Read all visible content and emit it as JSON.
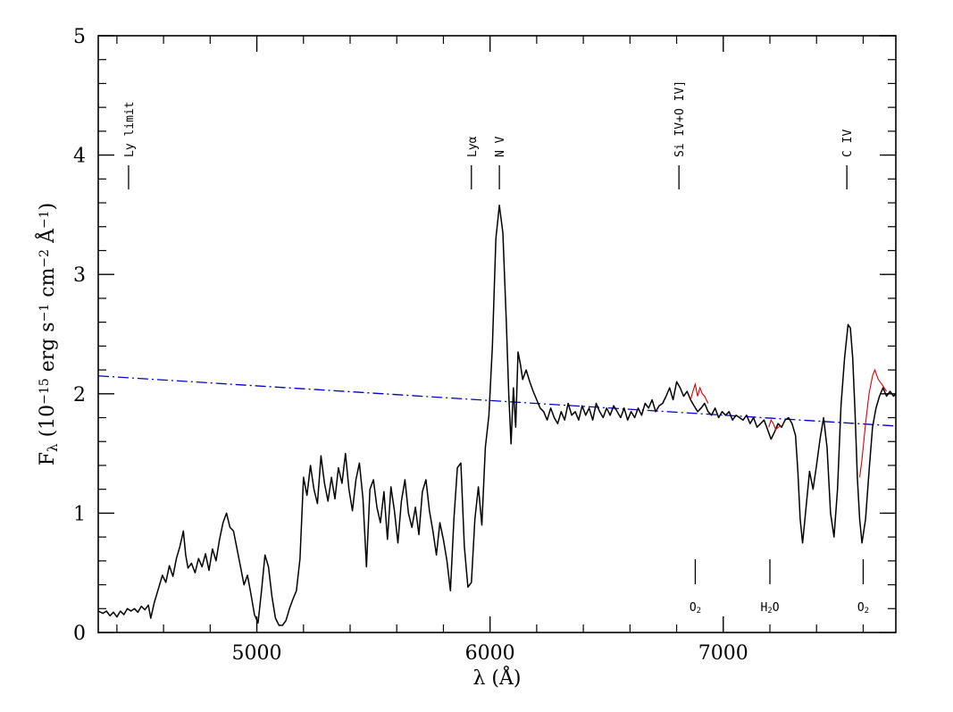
{
  "chart_data": {
    "type": "line",
    "xlabel": "λ (Å)",
    "ylabel": "F_λ (10^-15 erg s^-1 cm^-2 Å^-1)",
    "ylabel_parts": {
      "F": "F",
      "lambda_sub": "λ",
      "open": " (10",
      "exp1": "−15",
      "erg_s": " erg s",
      "exp2": "−1",
      "cm": " cm",
      "exp3": "−2",
      "ang": " Å",
      "exp4": "−1",
      "close": ")"
    },
    "xlim": [
      4320,
      7740
    ],
    "ylim": [
      0,
      5
    ],
    "x_ticks": [
      5000,
      6000,
      7000
    ],
    "x_tick_labels": [
      "5000",
      "6000",
      "7000"
    ],
    "y_ticks": [
      0,
      1,
      2,
      3,
      4,
      5
    ],
    "y_tick_labels": [
      "0",
      "1",
      "2",
      "3",
      "4",
      "5"
    ],
    "emission_lines": [
      {
        "label": "Ly limit",
        "x": 4450
      },
      {
        "label": "Lyα",
        "x": 5920
      },
      {
        "label": "N V",
        "x": 6040
      },
      {
        "label": "Si IV+O IV]",
        "x": 6810
      },
      {
        "label": "C IV",
        "x": 7530
      }
    ],
    "telluric_bands": [
      {
        "label": "O",
        "sub": "2",
        "x": 6880
      },
      {
        "label": "H",
        "sub": "2",
        "suffix": "O",
        "x": 7200
      },
      {
        "label": "O",
        "sub": "2",
        "x": 7600
      }
    ],
    "continuum": {
      "color": "#0000cc",
      "style": "dash-dot",
      "points": [
        [
          4320,
          2.15
        ],
        [
          7740,
          1.73
        ]
      ]
    },
    "spectrum": {
      "color": "#000000",
      "points": [
        [
          4320,
          0.18
        ],
        [
          4340,
          0.16
        ],
        [
          4355,
          0.18
        ],
        [
          4370,
          0.14
        ],
        [
          4385,
          0.17
        ],
        [
          4400,
          0.13
        ],
        [
          4415,
          0.18
        ],
        [
          4430,
          0.15
        ],
        [
          4445,
          0.2
        ],
        [
          4460,
          0.18
        ],
        [
          4475,
          0.2
        ],
        [
          4490,
          0.17
        ],
        [
          4505,
          0.22
        ],
        [
          4520,
          0.19
        ],
        [
          4535,
          0.23
        ],
        [
          4545,
          0.12
        ],
        [
          4560,
          0.25
        ],
        [
          4580,
          0.38
        ],
        [
          4595,
          0.48
        ],
        [
          4610,
          0.42
        ],
        [
          4625,
          0.56
        ],
        [
          4640,
          0.47
        ],
        [
          4655,
          0.62
        ],
        [
          4670,
          0.72
        ],
        [
          4685,
          0.85
        ],
        [
          4695,
          0.65
        ],
        [
          4705,
          0.54
        ],
        [
          4720,
          0.58
        ],
        [
          4735,
          0.5
        ],
        [
          4750,
          0.62
        ],
        [
          4765,
          0.55
        ],
        [
          4780,
          0.66
        ],
        [
          4795,
          0.52
        ],
        [
          4810,
          0.7
        ],
        [
          4825,
          0.6
        ],
        [
          4840,
          0.78
        ],
        [
          4855,
          0.92
        ],
        [
          4870,
          1.0
        ],
        [
          4885,
          0.88
        ],
        [
          4900,
          0.85
        ],
        [
          4915,
          0.7
        ],
        [
          4930,
          0.55
        ],
        [
          4945,
          0.4
        ],
        [
          4960,
          0.48
        ],
        [
          4975,
          0.32
        ],
        [
          4990,
          0.15
        ],
        [
          5005,
          0.08
        ],
        [
          5020,
          0.35
        ],
        [
          5035,
          0.65
        ],
        [
          5050,
          0.55
        ],
        [
          5065,
          0.3
        ],
        [
          5080,
          0.12
        ],
        [
          5095,
          0.06
        ],
        [
          5110,
          0.06
        ],
        [
          5125,
          0.1
        ],
        [
          5140,
          0.2
        ],
        [
          5155,
          0.28
        ],
        [
          5170,
          0.35
        ],
        [
          5185,
          0.62
        ],
        [
          5200,
          1.3
        ],
        [
          5215,
          1.15
        ],
        [
          5230,
          1.4
        ],
        [
          5245,
          1.2
        ],
        [
          5260,
          1.08
        ],
        [
          5275,
          1.48
        ],
        [
          5290,
          1.25
        ],
        [
          5305,
          1.1
        ],
        [
          5320,
          1.3
        ],
        [
          5335,
          1.12
        ],
        [
          5350,
          1.38
        ],
        [
          5365,
          1.25
        ],
        [
          5380,
          1.5
        ],
        [
          5395,
          1.2
        ],
        [
          5410,
          1.02
        ],
        [
          5425,
          1.28
        ],
        [
          5440,
          1.42
        ],
        [
          5455,
          1.12
        ],
        [
          5470,
          0.55
        ],
        [
          5485,
          1.2
        ],
        [
          5500,
          1.28
        ],
        [
          5515,
          1.05
        ],
        [
          5530,
          0.92
        ],
        [
          5545,
          1.18
        ],
        [
          5560,
          0.78
        ],
        [
          5575,
          1.22
        ],
        [
          5590,
          1.02
        ],
        [
          5605,
          0.75
        ],
        [
          5620,
          1.1
        ],
        [
          5635,
          1.28
        ],
        [
          5650,
          1.0
        ],
        [
          5665,
          0.88
        ],
        [
          5680,
          1.05
        ],
        [
          5695,
          0.82
        ],
        [
          5710,
          1.18
        ],
        [
          5725,
          1.28
        ],
        [
          5740,
          1.02
        ],
        [
          5755,
          0.85
        ],
        [
          5770,
          0.65
        ],
        [
          5785,
          0.92
        ],
        [
          5800,
          0.78
        ],
        [
          5815,
          0.6
        ],
        [
          5830,
          0.35
        ],
        [
          5845,
          0.95
        ],
        [
          5860,
          1.38
        ],
        [
          5875,
          1.42
        ],
        [
          5890,
          0.72
        ],
        [
          5905,
          0.38
        ],
        [
          5920,
          0.42
        ],
        [
          5935,
          0.95
        ],
        [
          5950,
          1.22
        ],
        [
          5965,
          0.9
        ],
        [
          5980,
          1.55
        ],
        [
          5995,
          1.82
        ],
        [
          6010,
          2.4
        ],
        [
          6025,
          3.3
        ],
        [
          6040,
          3.58
        ],
        [
          6055,
          3.35
        ],
        [
          6070,
          2.6
        ],
        [
          6080,
          2.0
        ],
        [
          6090,
          1.58
        ],
        [
          6100,
          2.05
        ],
        [
          6110,
          1.72
        ],
        [
          6120,
          2.35
        ],
        [
          6130,
          2.25
        ],
        [
          6140,
          2.12
        ],
        [
          6155,
          2.2
        ],
        [
          6170,
          2.1
        ],
        [
          6185,
          2.02
        ],
        [
          6200,
          1.95
        ],
        [
          6215,
          1.88
        ],
        [
          6230,
          1.85
        ],
        [
          6245,
          1.78
        ],
        [
          6260,
          1.88
        ],
        [
          6275,
          1.8
        ],
        [
          6290,
          1.75
        ],
        [
          6305,
          1.85
        ],
        [
          6320,
          1.78
        ],
        [
          6335,
          1.92
        ],
        [
          6350,
          1.82
        ],
        [
          6365,
          1.85
        ],
        [
          6380,
          1.78
        ],
        [
          6395,
          1.9
        ],
        [
          6410,
          1.82
        ],
        [
          6425,
          1.88
        ],
        [
          6440,
          1.78
        ],
        [
          6455,
          1.92
        ],
        [
          6470,
          1.85
        ],
        [
          6485,
          1.8
        ],
        [
          6500,
          1.88
        ],
        [
          6515,
          1.82
        ],
        [
          6530,
          1.9
        ],
        [
          6545,
          1.85
        ],
        [
          6560,
          1.8
        ],
        [
          6575,
          1.88
        ],
        [
          6590,
          1.78
        ],
        [
          6605,
          1.85
        ],
        [
          6620,
          1.8
        ],
        [
          6635,
          1.88
        ],
        [
          6650,
          1.82
        ],
        [
          6665,
          1.92
        ],
        [
          6680,
          1.88
        ],
        [
          6695,
          1.95
        ],
        [
          6710,
          1.85
        ],
        [
          6725,
          1.9
        ],
        [
          6740,
          1.92
        ],
        [
          6755,
          1.98
        ],
        [
          6770,
          2.05
        ],
        [
          6785,
          1.95
        ],
        [
          6800,
          2.1
        ],
        [
          6815,
          2.05
        ],
        [
          6830,
          1.98
        ],
        [
          6845,
          2.02
        ],
        [
          6860,
          1.95
        ],
        [
          6875,
          1.9
        ],
        [
          6890,
          1.85
        ],
        [
          6905,
          1.88
        ],
        [
          6920,
          1.92
        ],
        [
          6935,
          1.85
        ],
        [
          6950,
          1.82
        ],
        [
          6965,
          1.88
        ],
        [
          6980,
          1.8
        ],
        [
          6995,
          1.85
        ],
        [
          7010,
          1.82
        ],
        [
          7025,
          1.85
        ],
        [
          7040,
          1.78
        ],
        [
          7055,
          1.82
        ],
        [
          7070,
          1.8
        ],
        [
          7085,
          1.78
        ],
        [
          7100,
          1.82
        ],
        [
          7115,
          1.75
        ],
        [
          7130,
          1.8
        ],
        [
          7145,
          1.72
        ],
        [
          7160,
          1.75
        ],
        [
          7175,
          1.78
        ],
        [
          7190,
          1.7
        ],
        [
          7205,
          1.62
        ],
        [
          7220,
          1.68
        ],
        [
          7235,
          1.75
        ],
        [
          7250,
          1.72
        ],
        [
          7265,
          1.78
        ],
        [
          7280,
          1.8
        ],
        [
          7295,
          1.75
        ],
        [
          7310,
          1.65
        ],
        [
          7320,
          1.35
        ],
        [
          7330,
          0.95
        ],
        [
          7340,
          0.75
        ],
        [
          7355,
          1.05
        ],
        [
          7370,
          1.35
        ],
        [
          7385,
          1.2
        ],
        [
          7400,
          1.4
        ],
        [
          7415,
          1.62
        ],
        [
          7430,
          1.8
        ],
        [
          7445,
          1.55
        ],
        [
          7460,
          1.0
        ],
        [
          7475,
          0.8
        ],
        [
          7490,
          1.2
        ],
        [
          7505,
          1.9
        ],
        [
          7520,
          2.3
        ],
        [
          7535,
          2.58
        ],
        [
          7545,
          2.55
        ],
        [
          7555,
          2.3
        ],
        [
          7565,
          1.85
        ],
        [
          7575,
          1.3
        ],
        [
          7585,
          0.95
        ],
        [
          7595,
          0.75
        ],
        [
          7610,
          0.95
        ],
        [
          7625,
          1.35
        ],
        [
          7640,
          1.72
        ],
        [
          7655,
          1.88
        ],
        [
          7670,
          1.98
        ],
        [
          7685,
          2.05
        ],
        [
          7700,
          1.98
        ],
        [
          7715,
          2.02
        ],
        [
          7730,
          1.98
        ],
        [
          7740,
          2.0
        ]
      ]
    },
    "corrected": {
      "color": "#dd0000",
      "segments": [
        [
          [
            6860,
            1.95
          ],
          [
            6870,
            2.02
          ],
          [
            6880,
            2.08
          ],
          [
            6890,
            1.98
          ],
          [
            6900,
            2.05
          ],
          [
            6910,
            2.0
          ],
          [
            6920,
            1.98
          ],
          [
            6935,
            1.92
          ]
        ],
        [
          [
            7195,
            1.72
          ],
          [
            7205,
            1.78
          ],
          [
            7215,
            1.75
          ],
          [
            7225,
            1.7
          ],
          [
            7235,
            1.72
          ],
          [
            7250,
            1.73
          ]
        ],
        [
          [
            7585,
            1.3
          ],
          [
            7595,
            1.45
          ],
          [
            7610,
            1.75
          ],
          [
            7625,
            2.0
          ],
          [
            7640,
            2.15
          ],
          [
            7650,
            2.2
          ],
          [
            7665,
            2.12
          ],
          [
            7680,
            2.08
          ],
          [
            7700,
            2.02
          ]
        ]
      ]
    }
  }
}
